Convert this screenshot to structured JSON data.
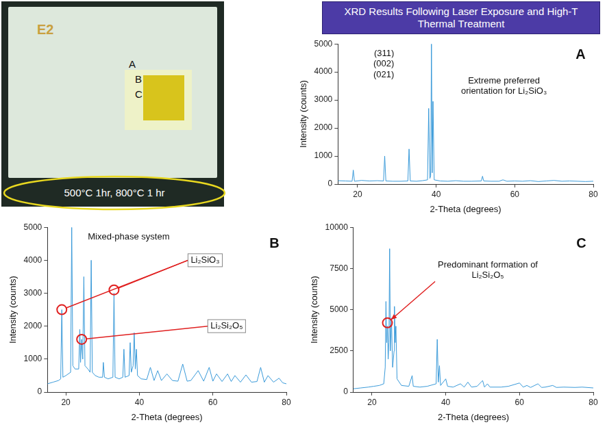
{
  "header": "XRD Results Following Laser Exposure and High-T Thermal Treatment",
  "photo": {
    "label": "E2",
    "spots": [
      "A",
      "B",
      "C"
    ],
    "caption": "500°C 1hr, 800°C 1 hr"
  },
  "chart_data": [
    {
      "panel": "A",
      "type": "line",
      "x_label": "2-Theta (degrees)",
      "y_label": "Intensity (counts)",
      "xlim": [
        15,
        80
      ],
      "xticks": [
        20,
        40,
        60,
        80
      ],
      "ylim": [
        0,
        5000
      ],
      "yticks": [
        0,
        1000,
        2000,
        3000,
        4000,
        5000
      ],
      "grid": false,
      "color": "#3a9ad9",
      "x": [
        15,
        17,
        18.6,
        18.9,
        19.2,
        21,
        23,
        25,
        26.6,
        26.9,
        27.2,
        29,
        31,
        32.8,
        33.1,
        33.4,
        35,
        36.5,
        37.8,
        38.1,
        38.4,
        38.6,
        38.8,
        39.0,
        39.2,
        39.5,
        41,
        43,
        45,
        47,
        49,
        51.5,
        51.8,
        52.1,
        54,
        56,
        57,
        58,
        60,
        62,
        64,
        66,
        68,
        70,
        72,
        74,
        76,
        78,
        80
      ],
      "values": [
        120,
        110,
        100,
        500,
        100,
        130,
        110,
        120,
        110,
        1000,
        110,
        100,
        100,
        110,
        1250,
        110,
        100,
        120,
        150,
        2700,
        200,
        300,
        5000,
        400,
        2950,
        150,
        110,
        100,
        120,
        100,
        100,
        110,
        280,
        110,
        100,
        100,
        150,
        100,
        110,
        100,
        120,
        90,
        110,
        130,
        100,
        110,
        100,
        90,
        100
      ],
      "annotations": [
        {
          "text": "(311)"
        },
        {
          "text": "(002)"
        },
        {
          "text": "(021)"
        },
        {
          "text": "Extreme preferred orientation for Li₂SiO₃"
        }
      ]
    },
    {
      "panel": "B",
      "type": "line",
      "x_label": "2-Theta (degrees)",
      "y_label": "Intensity (counts)",
      "xlim": [
        15,
        80
      ],
      "xticks": [
        20,
        40,
        60,
        80
      ],
      "ylim": [
        0,
        5000
      ],
      "yticks": [
        0,
        1000,
        2000,
        3000,
        4000,
        5000
      ],
      "grid": false,
      "color": "#3a9ad9",
      "x": [
        15,
        16.5,
        18,
        18.6,
        18.9,
        19.2,
        20,
        21.3,
        21.6,
        21.9,
        22.5,
        23.5,
        23.8,
        24.0,
        24.3,
        24.6,
        24.9,
        25.2,
        26,
        26.6,
        26.9,
        27.2,
        28,
        29,
        30,
        30.2,
        30.5,
        31.5,
        32.8,
        33.1,
        33.4,
        34.5,
        35.5,
        35.8,
        36.1,
        37.2,
        37.5,
        37.8,
        38.3,
        38.6,
        38.9,
        39.2,
        39.5,
        40.5,
        42,
        43,
        44,
        45,
        46,
        47.5,
        49,
        50.5,
        51.8,
        53,
        54,
        56,
        57.5,
        59,
        60,
        61,
        62.5,
        64,
        65,
        66,
        67.5,
        69,
        70.5,
        72,
        73,
        74,
        75,
        76.5,
        78,
        79,
        80
      ],
      "values": [
        250,
        300,
        350,
        400,
        2500,
        450,
        500,
        600,
        5000,
        800,
        700,
        700,
        1900,
        900,
        1600,
        1000,
        3500,
        800,
        700,
        600,
        4000,
        600,
        500,
        450,
        450,
        900,
        450,
        400,
        450,
        3000,
        450,
        400,
        450,
        1300,
        450,
        500,
        1500,
        600,
        800,
        1800,
        700,
        1300,
        500,
        400,
        380,
        750,
        350,
        650,
        350,
        550,
        350,
        330,
        850,
        330,
        350,
        650,
        330,
        750,
        330,
        550,
        320,
        550,
        320,
        500,
        300,
        520,
        300,
        320,
        750,
        300,
        500,
        300,
        420,
        280,
        250
      ],
      "annotations": [
        {
          "text": "Mixed-phase system"
        },
        {
          "text": "Li₂SiO₃",
          "points": [
            {
              "x": 18.9,
              "y": 2500
            },
            {
              "x": 33.1,
              "y": 3100
            }
          ]
        },
        {
          "text": "Li₂Si₂O₅",
          "points": [
            {
              "x": 24.3,
              "y": 1600
            }
          ]
        }
      ]
    },
    {
      "panel": "C",
      "type": "line",
      "x_label": "2-Theta (degrees)",
      "y_label": "Intensity (counts)",
      "xlim": [
        15,
        80
      ],
      "xticks": [
        20,
        40,
        60,
        80
      ],
      "ylim": [
        0,
        10000
      ],
      "yticks": [
        0,
        2500,
        5000,
        7500,
        10000
      ],
      "grid": false,
      "color": "#3a9ad9",
      "x": [
        15,
        17,
        19,
        20.5,
        22,
        23.2,
        23.6,
        23.8,
        24.0,
        24.2,
        24.4,
        24.6,
        24.8,
        25.0,
        25.3,
        25.6,
        26.0,
        26.1,
        26.3,
        26.5,
        26.8,
        28,
        30,
        30.9,
        31.2,
        33,
        35,
        37.4,
        37.7,
        38.0,
        38.3,
        38.6,
        40,
        40.5,
        42,
        44,
        45,
        46,
        47,
        48.5,
        50,
        50.5,
        51.3,
        52,
        55,
        57,
        60,
        61,
        62,
        63,
        65,
        66,
        67,
        69,
        70,
        72,
        75,
        77,
        80
      ],
      "values": [
        200,
        250,
        300,
        350,
        400,
        500,
        1500,
        5500,
        3000,
        4000,
        2000,
        3000,
        8700,
        2500,
        4500,
        1500,
        2500,
        5200,
        3000,
        4000,
        800,
        400,
        350,
        1000,
        350,
        300,
        350,
        500,
        3200,
        600,
        1600,
        400,
        800,
        350,
        300,
        500,
        300,
        600,
        300,
        350,
        700,
        300,
        500,
        300,
        300,
        350,
        550,
        300,
        400,
        280,
        500,
        280,
        300,
        400,
        280,
        300,
        280,
        300,
        250
      ],
      "annotations": [
        {
          "text": "Predominant formation of Li₂Si₂O₅",
          "points": [
            {
              "x": 24.2,
              "y": 4200
            }
          ]
        }
      ]
    }
  ]
}
